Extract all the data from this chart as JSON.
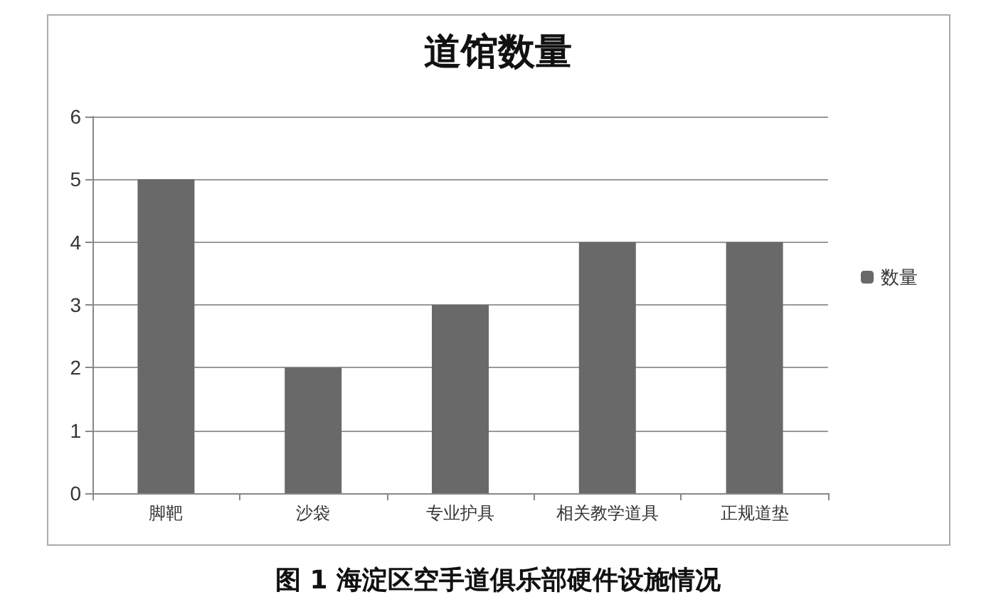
{
  "chart_data": {
    "type": "bar",
    "title": "道馆数量",
    "categories": [
      "脚靶",
      "沙袋",
      "专业护具",
      "相关教学道具",
      "正规道垫"
    ],
    "series": [
      {
        "name": "数量",
        "color": "#696969",
        "values": [
          5,
          2,
          3,
          4,
          4
        ]
      }
    ],
    "ylim": [
      0,
      6
    ],
    "yticks": [
      0,
      1,
      2,
      3,
      4,
      5,
      6
    ],
    "grid": "y",
    "legend": "right",
    "annotations": [
      "图 1  海淀区空手道俱乐部硬件设施情况"
    ]
  }
}
